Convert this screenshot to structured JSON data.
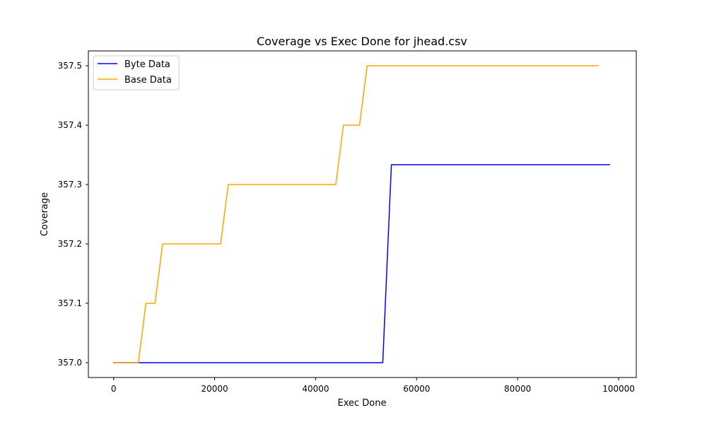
{
  "chart_data": {
    "type": "line",
    "title": "Coverage vs Exec Done for jhead.csv",
    "xlabel": "Exec Done",
    "ylabel": "Coverage",
    "xlim": [
      -5000,
      103500
    ],
    "ylim": [
      356.975,
      357.525
    ],
    "xticks": [
      0,
      20000,
      40000,
      60000,
      80000,
      100000
    ],
    "xtick_labels": [
      "0",
      "20000",
      "40000",
      "60000",
      "80000",
      "100000"
    ],
    "yticks": [
      357.0,
      357.1,
      357.2,
      357.3,
      357.4,
      357.5
    ],
    "ytick_labels": [
      "357.0",
      "357.1",
      "357.2",
      "357.3",
      "357.4",
      "357.5"
    ],
    "grid": false,
    "legend_position": "upper-left",
    "series": [
      {
        "name": "Byte Data",
        "color": "#0000ff",
        "points": [
          [
            0,
            357.0
          ],
          [
            5000,
            357.0
          ],
          [
            53300,
            357.0
          ],
          [
            55000,
            357.3333
          ],
          [
            98200,
            357.3333
          ]
        ]
      },
      {
        "name": "Base Data",
        "color": "#ffa500",
        "points": [
          [
            0,
            357.0
          ],
          [
            4900,
            357.0
          ],
          [
            6400,
            357.1
          ],
          [
            8200,
            357.1
          ],
          [
            9700,
            357.2
          ],
          [
            21200,
            357.2
          ],
          [
            22700,
            357.3
          ],
          [
            44000,
            357.3
          ],
          [
            45500,
            357.4
          ],
          [
            48700,
            357.4
          ],
          [
            50200,
            357.5
          ],
          [
            95900,
            357.5
          ]
        ]
      }
    ]
  }
}
